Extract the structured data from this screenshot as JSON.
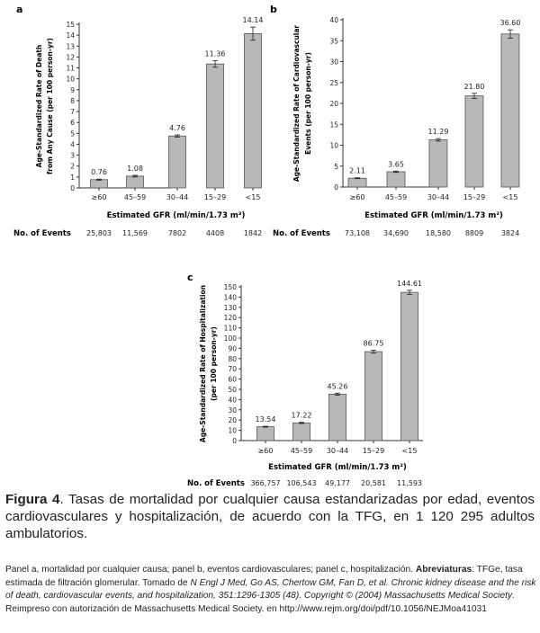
{
  "chart_data": [
    {
      "type": "bar",
      "panel_label": "a",
      "categories": [
        "≥60",
        "45–59",
        "30–44",
        "15–29",
        "<15"
      ],
      "values": [
        0.76,
        1.08,
        4.76,
        11.36,
        14.14
      ],
      "value_labels": [
        "0.76",
        "1.08",
        "4.76",
        "11.36",
        "14.14"
      ],
      "errors": [
        0.05,
        0.08,
        0.1,
        0.3,
        0.6
      ],
      "ylabel_line1": "Age-Standardized Rate of Death",
      "ylabel_line2": "from Any Cause (per 100 person-yr)",
      "xlabel": "Estimated GFR (ml/min/1.73 m²)",
      "ylim": [
        0,
        15
      ],
      "yticks": [
        0,
        1,
        2,
        3,
        4,
        5,
        6,
        7,
        8,
        9,
        10,
        11,
        12,
        13,
        14,
        15
      ],
      "events_label": "No. of Events",
      "events": [
        "25,803",
        "11,569",
        "7802",
        "4408",
        "1842"
      ],
      "bar_color": "#b8b8b8",
      "grid": false
    },
    {
      "type": "bar",
      "panel_label": "b",
      "categories": [
        "≥60",
        "45–59",
        "30–44",
        "15–29",
        "<15"
      ],
      "values": [
        2.11,
        3.65,
        11.29,
        21.8,
        36.6
      ],
      "value_labels": [
        "2.11",
        "3.65",
        "11.29",
        "21.80",
        "36.60"
      ],
      "errors": [
        0.1,
        0.15,
        0.3,
        0.6,
        1.0
      ],
      "ylabel_line1": "Age-Standardized Rate of Cardiovascular",
      "ylabel_line2": "Events (per 100 person-yr)",
      "xlabel": "Estimated GFR (ml/min/1.73 m²)",
      "ylim": [
        0,
        40
      ],
      "yticks": [
        0,
        5,
        10,
        15,
        20,
        25,
        30,
        35,
        40
      ],
      "events_label": "No. of Events",
      "events": [
        "73,108",
        "34,690",
        "18,580",
        "8809",
        "3824"
      ],
      "bar_color": "#b8b8b8",
      "grid": false
    },
    {
      "type": "bar",
      "panel_label": "c",
      "categories": [
        "≥60",
        "45–59",
        "30–44",
        "15–29",
        "<15"
      ],
      "values": [
        13.54,
        17.22,
        45.26,
        86.75,
        144.61
      ],
      "value_labels": [
        "13.54",
        "17.22",
        "45.26",
        "86.75",
        "144.61"
      ],
      "errors": [
        0.5,
        0.6,
        1.0,
        1.5,
        2.0
      ],
      "ylabel_line1": "Age-Standardized Rate of Hospitalization",
      "ylabel_line2": "(per 100 person-yr)",
      "xlabel": "Estimated GFR (ml/min/1.73 m²)",
      "ylim": [
        0,
        150
      ],
      "yticks": [
        0,
        10,
        20,
        30,
        40,
        50,
        60,
        70,
        80,
        90,
        100,
        110,
        120,
        130,
        140,
        150
      ],
      "events_label": "No. of Events",
      "events": [
        "366,757",
        "106,543",
        "49,177",
        "20,581",
        "11,593"
      ],
      "bar_color": "#b8b8b8",
      "grid": false
    }
  ],
  "caption": {
    "figure_label": "Figura 4",
    "text": ". Tasas de mortalidad por cualquier causa estandarizadas por edad, eventos cardiovasculares y hospitalización, de acuerdo con la TFG, en 1 120 295 adultos ambulatorios."
  },
  "note": {
    "part1": "Panel a, mortalidad por cualquier causa;  panel b, eventos cardiovasculares; panel c, hospitalización. ",
    "bold": "Abreviaturas",
    "part2": ": TFGe, tasa estimada de filtración glomerular. Tomado de ",
    "citation": "N Engl J Med, Go AS, Chertow GM, Fan D, et al. Chronic kidney disease and the risk of death, cardiovascular events, and hospitalization, 351:1296-1305 (48). Copyright © (2004) Massachusetts Medical Society",
    "part3": ". Reimpreso con autorización de Massachusetts Medical Society. en http://www.rejm.org/doi/pdf/10.1056/NEJMoa41031"
  }
}
